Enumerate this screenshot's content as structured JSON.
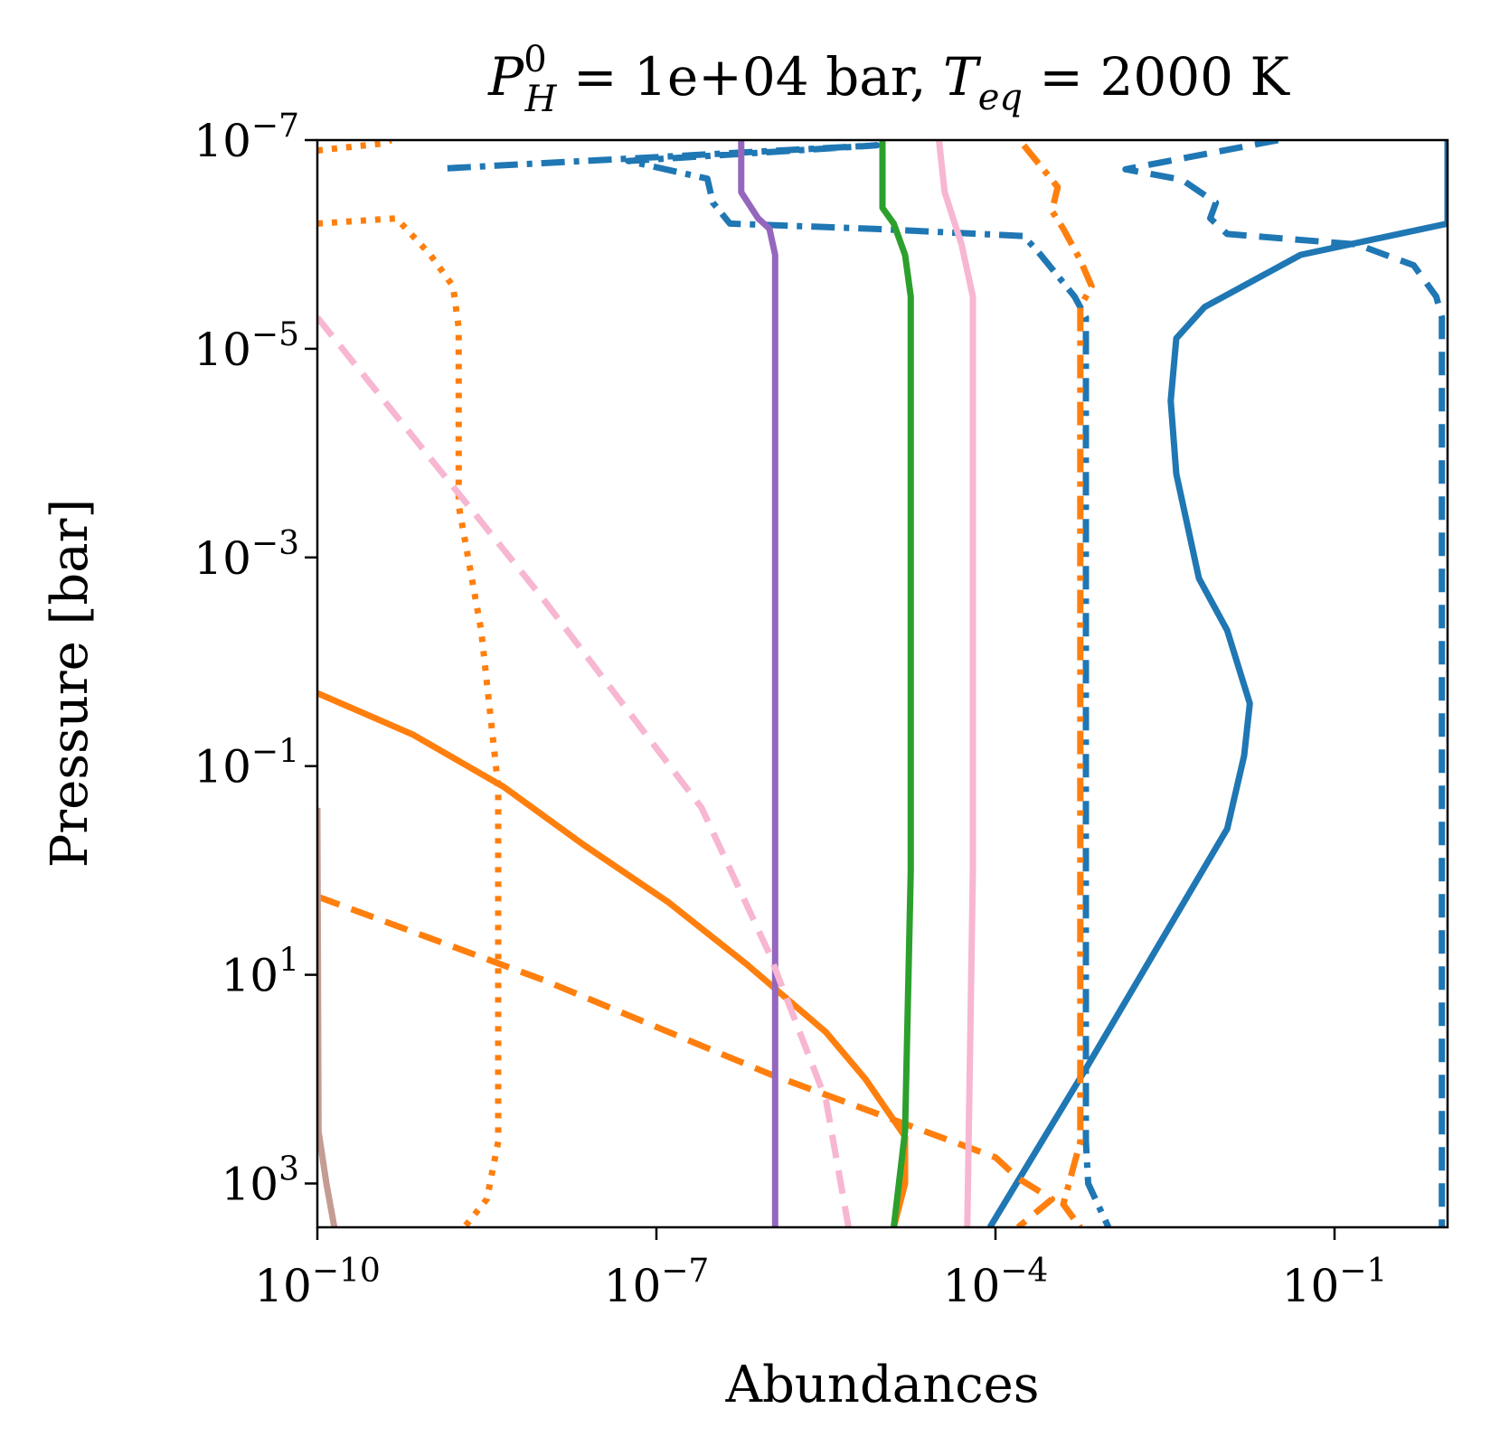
{
  "chart_data": {
    "type": "line",
    "title": {
      "p_symbol": "P",
      "p_sup": "0",
      "p_sub": "H",
      "p_value": " = 1e+04 bar, ",
      "t_symbol": "T",
      "t_sub": "eq",
      "t_value": " = 2000 K"
    },
    "xlabel": "Abundances",
    "ylabel": "Pressure [bar]",
    "xscale": "log",
    "yscale": "log",
    "yinverted": true,
    "xlim_exp": [
      -10,
      0
    ],
    "ylim_exp": [
      -7,
      3.42
    ],
    "xticks": [
      {
        "exp": -10,
        "base": "10",
        "sup": "−10"
      },
      {
        "exp": -7,
        "base": "10",
        "sup": "−7"
      },
      {
        "exp": -4,
        "base": "10",
        "sup": "−4"
      },
      {
        "exp": -1,
        "base": "10",
        "sup": "−1"
      }
    ],
    "yticks": [
      {
        "exp": -7,
        "base": "10",
        "sup": "−7"
      },
      {
        "exp": -5,
        "base": "10",
        "sup": "−5"
      },
      {
        "exp": -3,
        "base": "10",
        "sup": "−3"
      },
      {
        "exp": -1,
        "base": "10",
        "sup": "−1"
      },
      {
        "exp": 1,
        "base": "10",
        "sup": "1"
      },
      {
        "exp": 3,
        "base": "10",
        "sup": "3"
      }
    ],
    "colors": {
      "blue": "#1f77b4",
      "orange": "#ff7f0e",
      "green": "#2ca02c",
      "purple": "#9467bd",
      "pink": "#f7b6d2",
      "brown": "#c49c94"
    },
    "series": [
      {
        "name": "blue-solid",
        "color": "#1f77b4",
        "dash": "solid",
        "points": [
          [
            0,
            -7
          ],
          [
            0,
            -6.2
          ],
          [
            -1.3,
            -5.9
          ],
          [
            -2.15,
            -5.4
          ],
          [
            -2.4,
            -5.1
          ],
          [
            -2.45,
            -4.5
          ],
          [
            -2.4,
            -3.8
          ],
          [
            -2.2,
            -2.8
          ],
          [
            -1.95,
            -2.3
          ],
          [
            -1.75,
            -1.6
          ],
          [
            -1.8,
            -1.1
          ],
          [
            -1.95,
            -0.4
          ],
          [
            -3.2,
            1.9
          ],
          [
            -4.05,
            3.42
          ]
        ]
      },
      {
        "name": "blue-dashed",
        "color": "#1f77b4",
        "dash": "dashed",
        "points": [
          [
            -1.5,
            -7
          ],
          [
            -2.85,
            -6.72
          ],
          [
            -2.35,
            -6.62
          ],
          [
            -2.05,
            -6.4
          ],
          [
            -2.1,
            -6.25
          ],
          [
            -1.95,
            -6.1
          ],
          [
            -0.8,
            -6.0
          ],
          [
            -0.3,
            -5.8
          ],
          [
            -0.1,
            -5.5
          ],
          [
            -0.05,
            -5.3
          ],
          [
            -0.05,
            3.42
          ]
        ]
      },
      {
        "name": "blue-dashdot",
        "color": "#1f77b4",
        "dash": "dashdot",
        "points": [
          [
            -8.85,
            -6.73
          ],
          [
            -5.05,
            -6.95
          ],
          [
            -7.25,
            -6.8
          ],
          [
            -6.55,
            -6.63
          ],
          [
            -6.5,
            -6.4
          ],
          [
            -6.35,
            -6.2
          ],
          [
            -5.1,
            -6.15
          ],
          [
            -3.75,
            -6.08
          ],
          [
            -3.6,
            -5.9
          ],
          [
            -3.3,
            -5.5
          ],
          [
            -3.2,
            -5.3
          ],
          [
            -3.2,
            2.6
          ],
          [
            -3.18,
            3.0
          ],
          [
            -3.0,
            3.42
          ]
        ]
      },
      {
        "name": "orange-solid",
        "color": "#ff7f0e",
        "dash": "solid",
        "points": [
          [
            -10,
            -1.7
          ],
          [
            -9.15,
            -1.3
          ],
          [
            -8.35,
            -0.8
          ],
          [
            -7.65,
            -0.25
          ],
          [
            -6.9,
            0.3
          ],
          [
            -6.2,
            0.9
          ],
          [
            -5.5,
            1.55
          ],
          [
            -5.15,
            2.0
          ],
          [
            -4.8,
            2.55
          ],
          [
            -4.8,
            3.0
          ],
          [
            -4.9,
            3.42
          ]
        ]
      },
      {
        "name": "orange-dashed",
        "color": "#ff7f0e",
        "dash": "dashed",
        "points": [
          [
            -10,
            0.25
          ],
          [
            -9.0,
            0.65
          ],
          [
            -8.0,
            1.05
          ],
          [
            -7.0,
            1.5
          ],
          [
            -6.0,
            1.95
          ],
          [
            -5.0,
            2.35
          ],
          [
            -4.0,
            2.75
          ],
          [
            -3.8,
            2.95
          ],
          [
            -3.5,
            3.15
          ],
          [
            -3.8,
            3.42
          ]
        ]
      },
      {
        "name": "orange-dashdot",
        "color": "#ff7f0e",
        "dash": "dashdot",
        "points": [
          [
            -3.75,
            -6.95
          ],
          [
            -3.45,
            -6.55
          ],
          [
            -3.5,
            -6.32
          ],
          [
            -3.4,
            -6.15
          ],
          [
            -3.25,
            -5.85
          ],
          [
            -3.15,
            -5.6
          ],
          [
            -3.25,
            -5.4
          ],
          [
            -3.25,
            2.6
          ],
          [
            -3.4,
            3.2
          ],
          [
            -3.25,
            3.42
          ]
        ]
      },
      {
        "name": "orange-dotted-left",
        "color": "#ff7f0e",
        "dash": "dotted",
        "points": [
          [
            -10,
            -6.9
          ],
          [
            -9.4,
            -6.97
          ],
          [
            -9.35,
            -7
          ]
        ]
      },
      {
        "name": "orange-dotted",
        "color": "#ff7f0e",
        "dash": "dotted",
        "points": [
          [
            -10,
            -6.2
          ],
          [
            -9.3,
            -6.25
          ],
          [
            -9.0,
            -5.9
          ],
          [
            -8.8,
            -5.6
          ],
          [
            -8.75,
            -5.2
          ],
          [
            -8.75,
            -3.5
          ],
          [
            -8.55,
            -2.3
          ],
          [
            -8.4,
            -0.8
          ],
          [
            -8.4,
            2.6
          ],
          [
            -8.5,
            3.15
          ],
          [
            -8.7,
            3.42
          ]
        ]
      },
      {
        "name": "purple-solid",
        "color": "#9467bd",
        "dash": "solid",
        "points": [
          [
            -6.25,
            -7
          ],
          [
            -6.25,
            -6.5
          ],
          [
            -6.1,
            -6.25
          ],
          [
            -6.0,
            -6.15
          ],
          [
            -5.95,
            -5.9
          ],
          [
            -5.95,
            -5.5
          ],
          [
            -5.95,
            -3.0
          ],
          [
            -5.95,
            0
          ],
          [
            -5.95,
            3.42
          ]
        ]
      },
      {
        "name": "green-solid",
        "color": "#2ca02c",
        "dash": "solid",
        "points": [
          [
            -5.0,
            -7
          ],
          [
            -5.0,
            -6.35
          ],
          [
            -4.9,
            -6.2
          ],
          [
            -4.8,
            -5.9
          ],
          [
            -4.75,
            -5.5
          ],
          [
            -4.75,
            -3.0
          ],
          [
            -4.75,
            0
          ],
          [
            -4.8,
            2.5
          ],
          [
            -4.9,
            3.42
          ]
        ]
      },
      {
        "name": "pink-solid",
        "color": "#f7b6d2",
        "dash": "solid",
        "points": [
          [
            -4.5,
            -7
          ],
          [
            -4.45,
            -6.5
          ],
          [
            -4.3,
            -6.0
          ],
          [
            -4.2,
            -5.5
          ],
          [
            -4.2,
            -3.0
          ],
          [
            -4.2,
            0
          ],
          [
            -4.25,
            3.42
          ]
        ]
      },
      {
        "name": "pink-dashed",
        "color": "#f7b6d2",
        "dash": "dashed",
        "points": [
          [
            -10,
            -5.3
          ],
          [
            -8.0,
            -2.6
          ],
          [
            -6.6,
            -0.6
          ],
          [
            -6.0,
            0.8
          ],
          [
            -5.5,
            2.2
          ],
          [
            -5.3,
            3.42
          ]
        ]
      },
      {
        "name": "brown-solid",
        "color": "#c49c94",
        "dash": "solid",
        "points": [
          [
            -10,
            -0.6
          ],
          [
            -9.99,
            2.5
          ],
          [
            -9.92,
            3.0
          ],
          [
            -9.85,
            3.42
          ]
        ]
      }
    ]
  }
}
